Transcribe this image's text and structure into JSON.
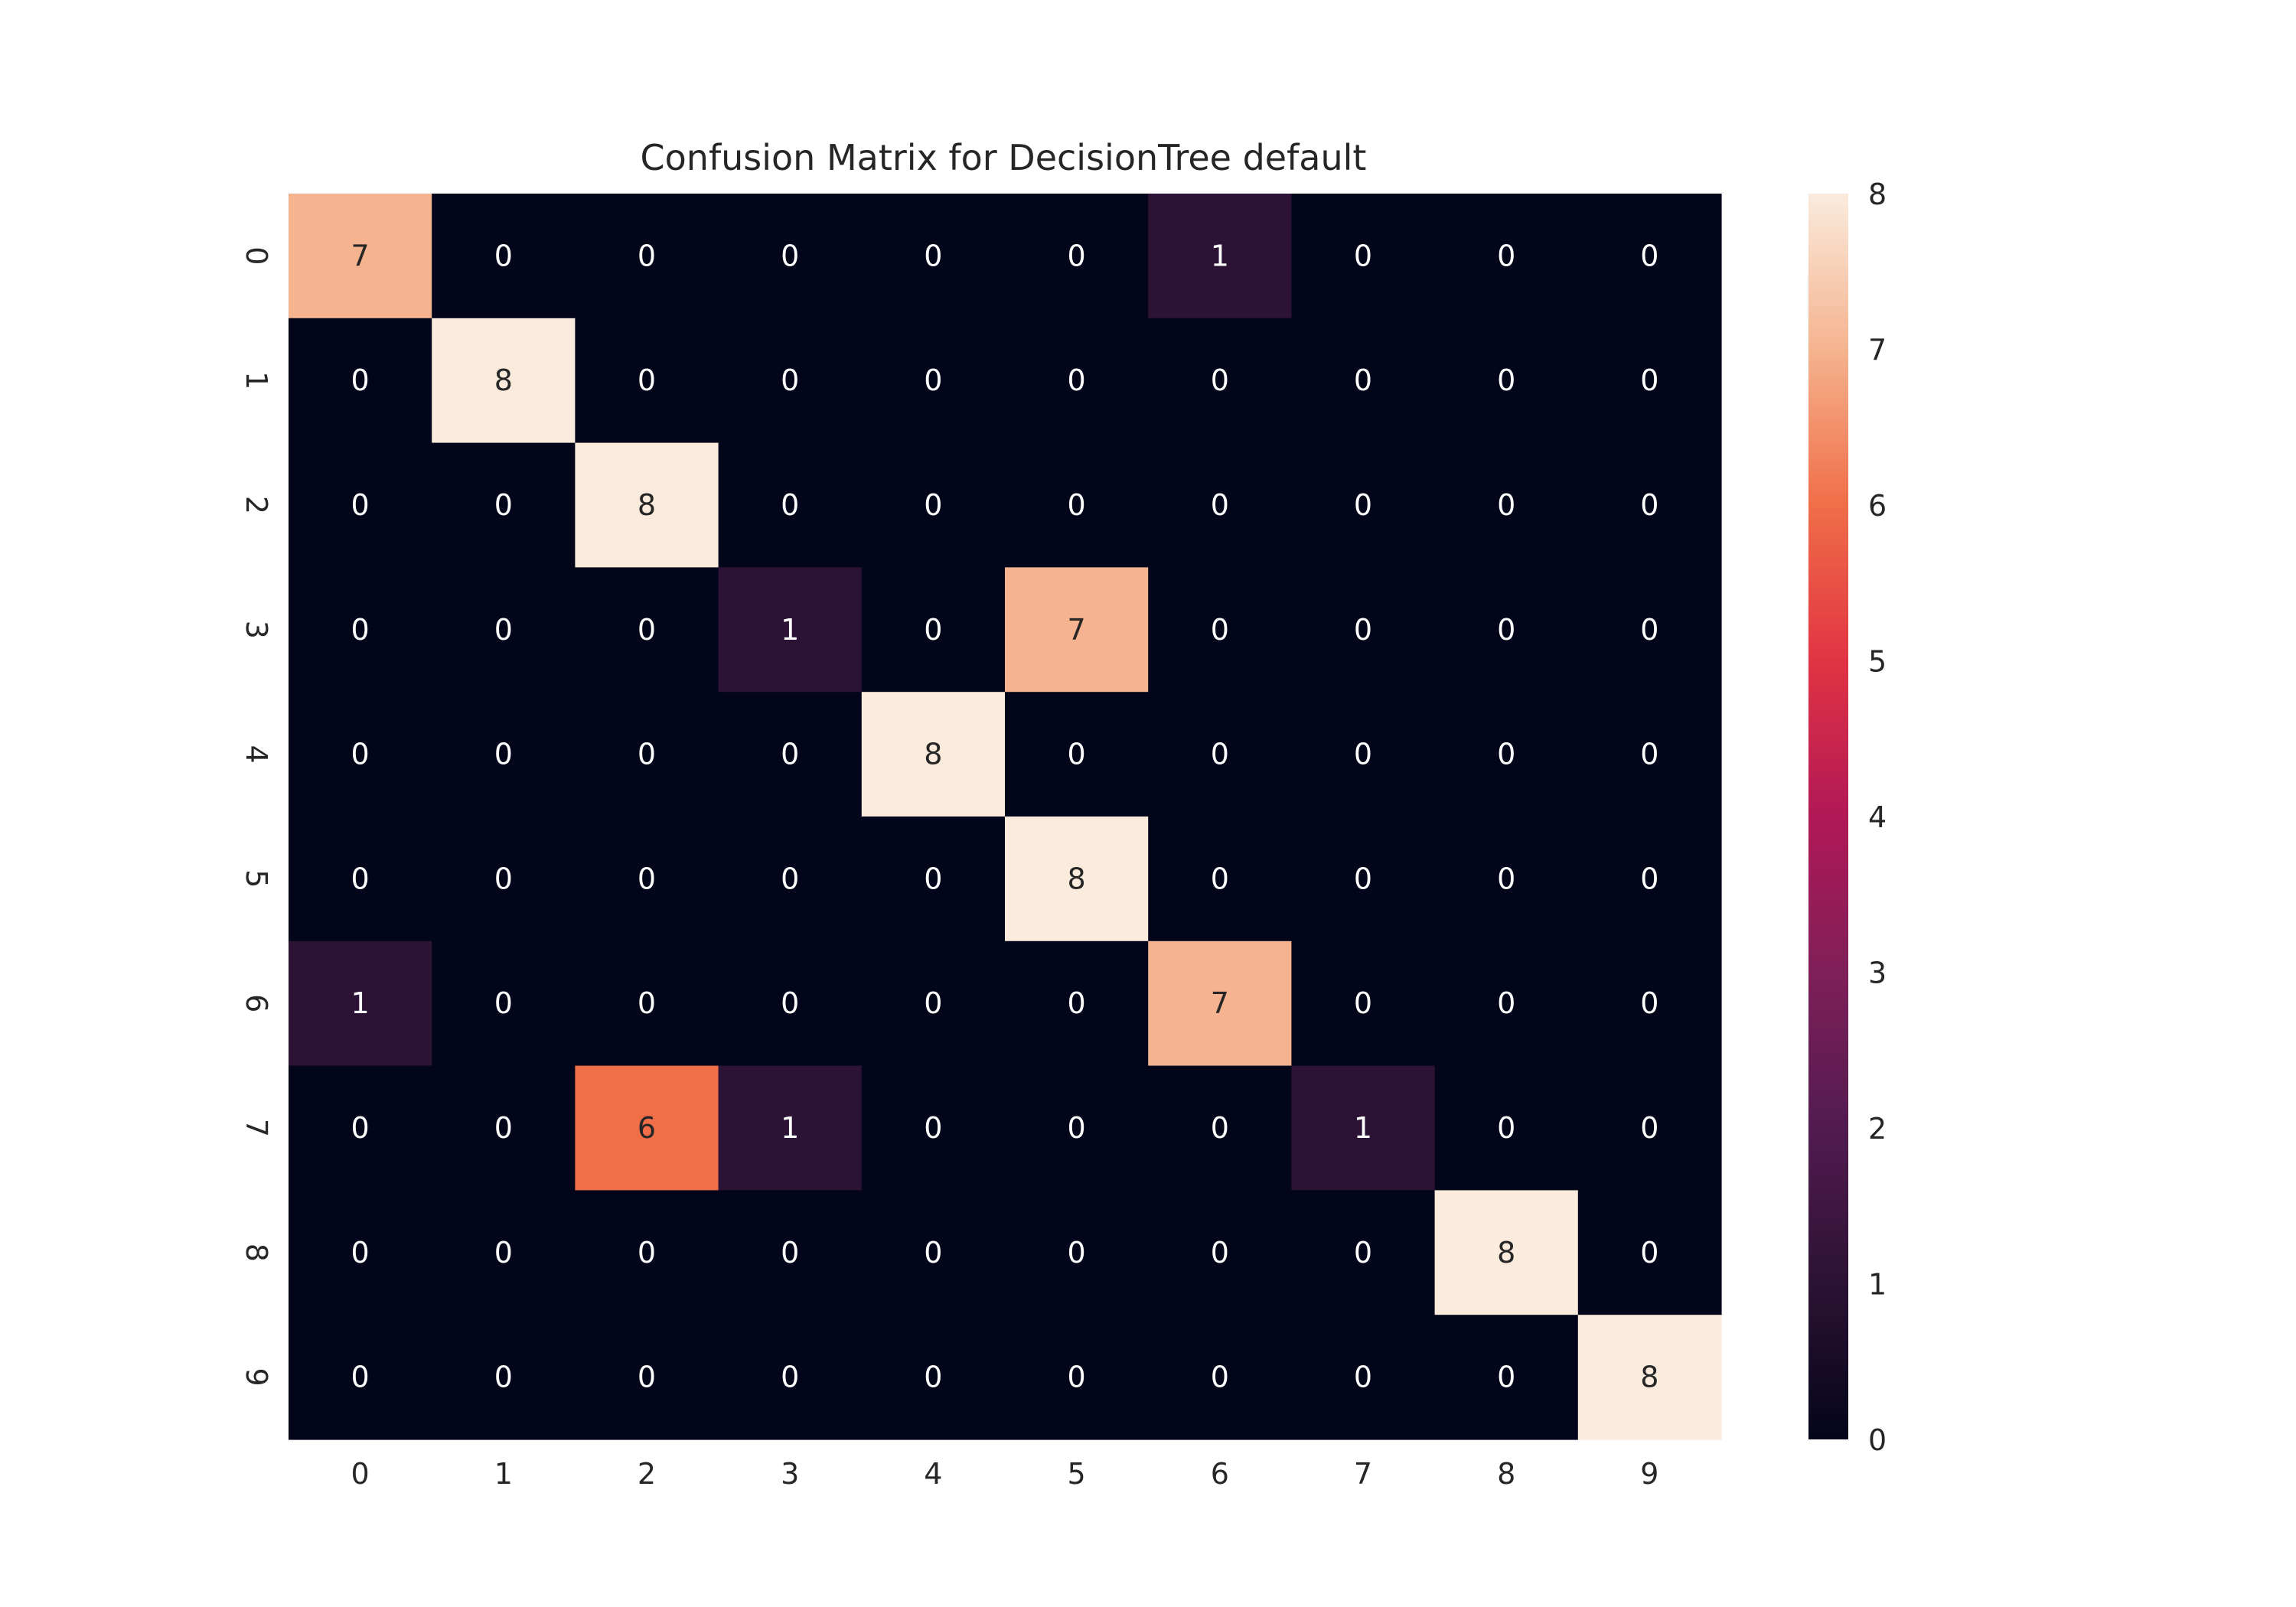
{
  "chart_data": {
    "type": "heatmap",
    "title": "Confusion Matrix for DecisionTree default",
    "xlabel": "",
    "ylabel": "",
    "x_categories": [
      "0",
      "1",
      "2",
      "3",
      "4",
      "5",
      "6",
      "7",
      "8",
      "9"
    ],
    "y_categories": [
      "0",
      "1",
      "2",
      "3",
      "4",
      "5",
      "6",
      "7",
      "8",
      "9"
    ],
    "values": [
      [
        7,
        0,
        0,
        0,
        0,
        0,
        1,
        0,
        0,
        0
      ],
      [
        0,
        8,
        0,
        0,
        0,
        0,
        0,
        0,
        0,
        0
      ],
      [
        0,
        0,
        8,
        0,
        0,
        0,
        0,
        0,
        0,
        0
      ],
      [
        0,
        0,
        0,
        1,
        0,
        7,
        0,
        0,
        0,
        0
      ],
      [
        0,
        0,
        0,
        0,
        8,
        0,
        0,
        0,
        0,
        0
      ],
      [
        0,
        0,
        0,
        0,
        0,
        8,
        0,
        0,
        0,
        0
      ],
      [
        1,
        0,
        0,
        0,
        0,
        0,
        7,
        0,
        0,
        0
      ],
      [
        0,
        0,
        6,
        1,
        0,
        0,
        0,
        1,
        0,
        0
      ],
      [
        0,
        0,
        0,
        0,
        0,
        0,
        0,
        0,
        8,
        0
      ],
      [
        0,
        0,
        0,
        0,
        0,
        0,
        0,
        0,
        0,
        8
      ]
    ],
    "color_range": [
      0,
      8
    ],
    "colorbar_ticks": [
      0,
      1,
      2,
      3,
      4,
      5,
      6,
      7,
      8
    ],
    "colormap": "rocket",
    "annotated": true,
    "grid": false,
    "legend": "colorbar-right"
  }
}
